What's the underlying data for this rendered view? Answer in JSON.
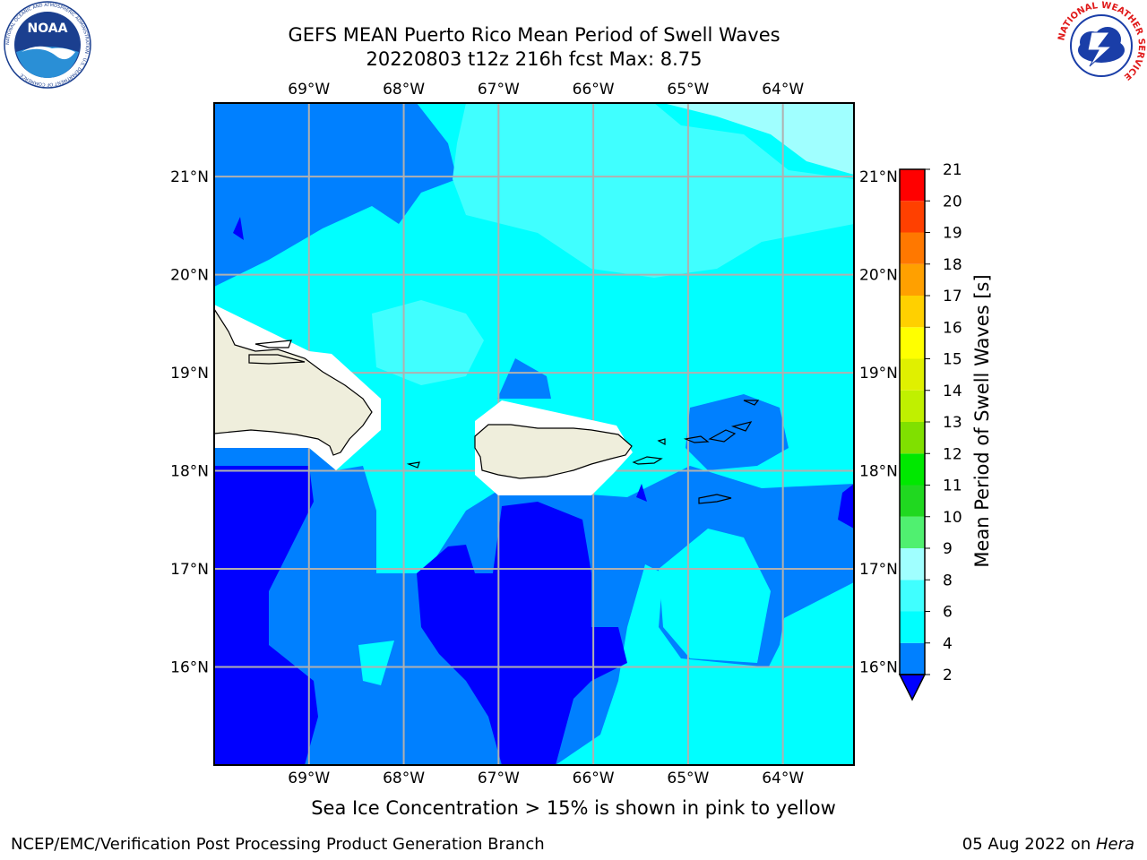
{
  "header": {
    "title_line1": "GEFS MEAN Puerto Rico Mean Period of Swell Waves",
    "title_line2": "20220803 t12z 216h fcst   Max: 8.75"
  },
  "logos": {
    "noaa": "NOAA",
    "noaa_ring_text": "NATIONAL OCEANIC AND ATMOSPHERIC ADMINISTRATION · U.S. DEPARTMENT OF COMMERCE",
    "nws_ring_text": "NATIONAL WEATHER SERVICE"
  },
  "map": {
    "lon_labels": [
      "69°W",
      "68°W",
      "67°W",
      "66°W",
      "65°W",
      "64°W"
    ],
    "lat_labels": [
      "21°N",
      "20°N",
      "19°N",
      "18°N",
      "17°N",
      "16°N"
    ],
    "extent": {
      "lon_min": -70.0,
      "lon_max": -63.25,
      "lat_min": 15.0,
      "lat_max": 21.75
    },
    "ocean_base_color": "#00ffff"
  },
  "colorbar": {
    "title": "Mean Period of Swell Waves [s]",
    "levels": [
      2,
      4,
      6,
      8,
      9,
      10,
      11,
      12,
      13,
      14,
      15,
      16,
      17,
      18,
      19,
      20,
      21
    ],
    "colors": [
      "#0000ff",
      "#0080ff",
      "#00ffff",
      "#40ffff",
      "#a0ffff",
      "#50f070",
      "#20d820",
      "#00e800",
      "#80e000",
      "#c0f000",
      "#e0f000",
      "#ffff00",
      "#ffd000",
      "#ffa000",
      "#ff7800",
      "#ff4000",
      "#ff0000"
    ],
    "under_color": "#0000ff"
  },
  "footer": {
    "note": "Sea Ice Concentration > 15% is shown in pink to yellow",
    "credit": "NCEP/EMC/Verification Post Processing Product Generation Branch",
    "date_prefix": "05 Aug 2022 on ",
    "date_machine": "Hera"
  }
}
